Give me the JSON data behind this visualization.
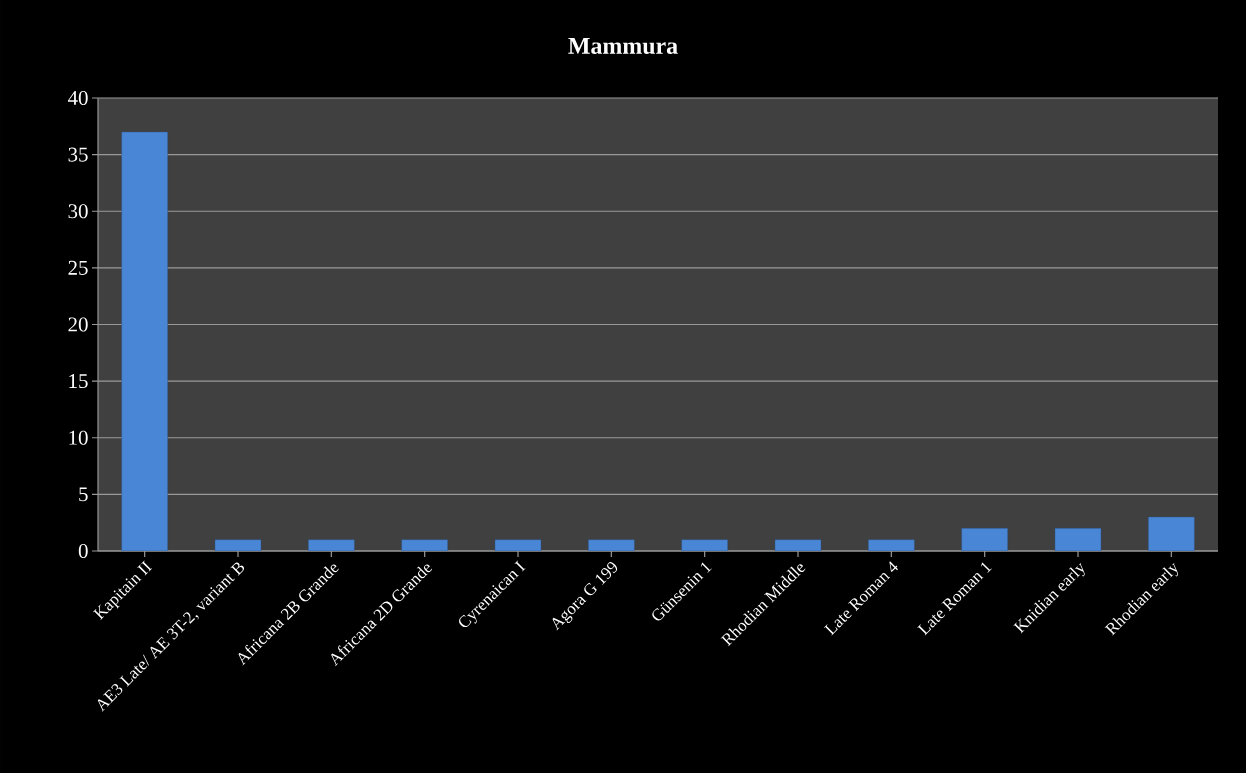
{
  "chart_data": {
    "type": "bar",
    "title": "Mammura",
    "categories": [
      "Kapitain II",
      "AE3 Late/ AE 3T-2, variant B",
      "Africana 2B Grande",
      "Africana 2D Grande",
      "Cyrenaican I",
      "Agora G 199",
      "Günsenin 1",
      "Rhodian Middle",
      "Late Roman 4",
      "Late Roman 1",
      "Knidian early",
      "Rhodian early"
    ],
    "values": [
      37,
      1,
      1,
      1,
      1,
      1,
      1,
      1,
      1,
      2,
      2,
      3
    ],
    "color": "#4a86d6",
    "ylim": [
      0,
      40
    ],
    "yticks": [
      0,
      5,
      10,
      15,
      20,
      25,
      30,
      35,
      40
    ],
    "grid": "y"
  }
}
